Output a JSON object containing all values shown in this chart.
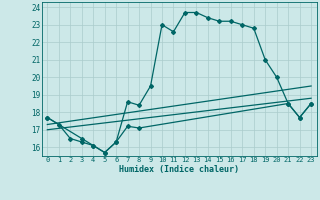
{
  "xlabel": "Humidex (Indice chaleur)",
  "bg_color": "#cce8e8",
  "grid_color": "#aacccc",
  "line_color": "#006666",
  "xlim": [
    -0.5,
    23.5
  ],
  "ylim": [
    15.5,
    24.3
  ],
  "xticks": [
    0,
    1,
    2,
    3,
    4,
    5,
    6,
    7,
    8,
    9,
    10,
    11,
    12,
    13,
    14,
    15,
    16,
    17,
    18,
    19,
    20,
    21,
    22,
    23
  ],
  "yticks": [
    16,
    17,
    18,
    19,
    20,
    21,
    22,
    23,
    24
  ],
  "lines": [
    {
      "x": [
        0,
        1,
        2,
        3,
        4,
        5,
        6,
        7,
        8,
        9,
        10,
        11,
        12,
        13,
        14,
        15,
        16,
        17,
        18,
        19,
        20,
        21,
        22,
        23
      ],
      "y": [
        17.7,
        17.3,
        16.5,
        16.3,
        16.1,
        15.7,
        16.3,
        18.6,
        18.4,
        19.5,
        23.0,
        22.6,
        23.7,
        23.7,
        23.4,
        23.2,
        23.2,
        23.0,
        22.8,
        21.0,
        20.0,
        18.5,
        17.7,
        18.5
      ],
      "marker": "D",
      "ms": 2.0,
      "lw": 0.9
    },
    {
      "x": [
        0,
        3,
        4,
        5,
        6,
        7,
        8,
        21,
        22,
        23
      ],
      "y": [
        17.7,
        16.5,
        16.1,
        15.7,
        16.3,
        17.2,
        17.1,
        18.5,
        17.7,
        18.5
      ],
      "marker": "D",
      "ms": 2.0,
      "lw": 0.9
    },
    {
      "x": [
        0,
        23
      ],
      "y": [
        17.3,
        19.5
      ],
      "marker": null,
      "ms": 0,
      "lw": 0.9
    },
    {
      "x": [
        0,
        23
      ],
      "y": [
        17.0,
        18.8
      ],
      "marker": null,
      "ms": 0,
      "lw": 0.9
    }
  ]
}
